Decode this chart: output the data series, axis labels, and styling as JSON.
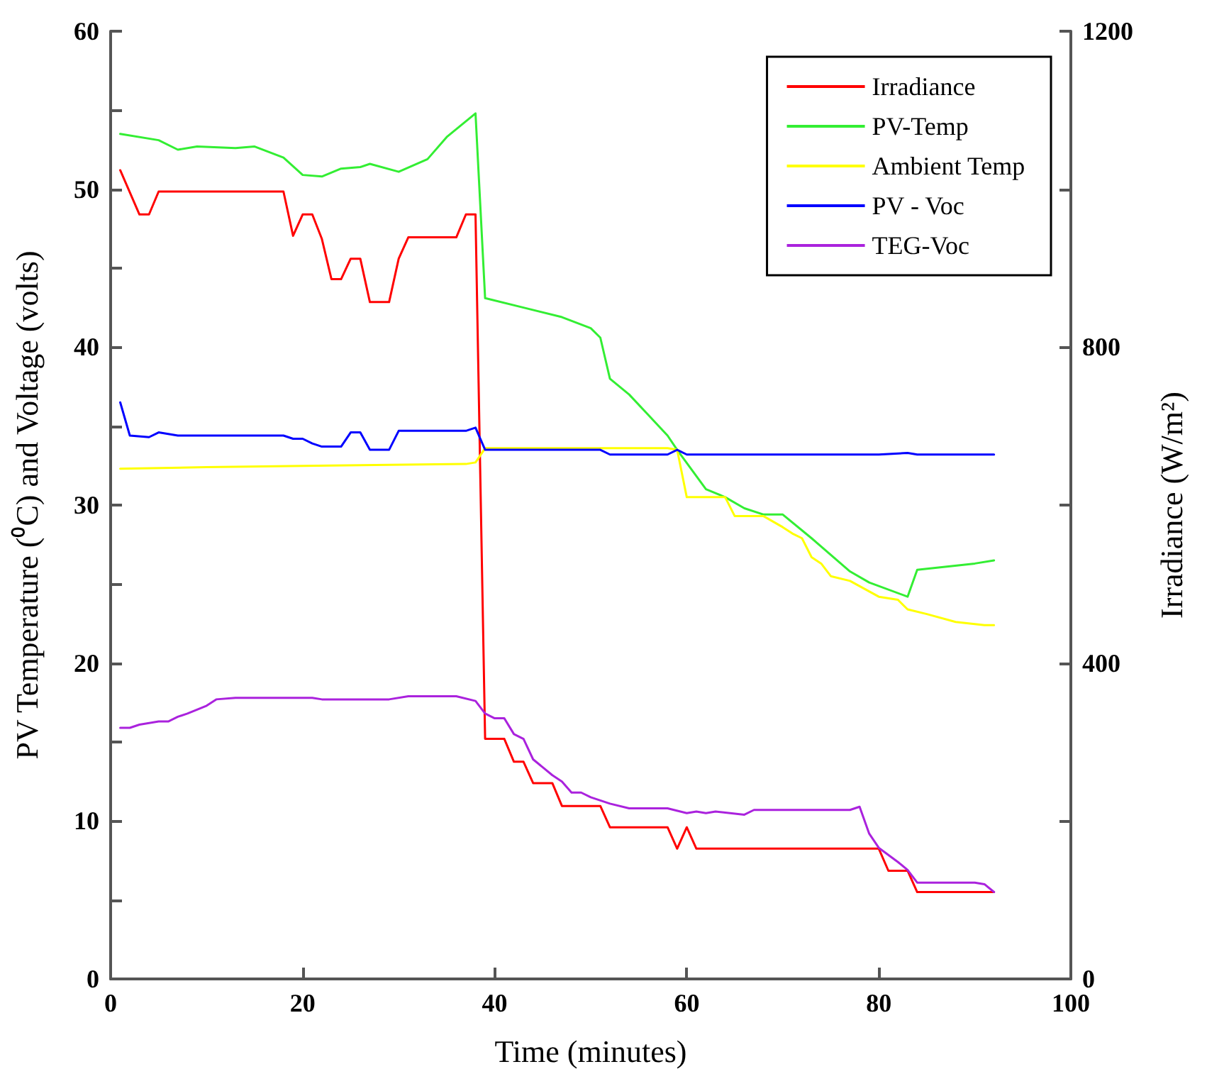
{
  "chart_data": {
    "type": "line",
    "xlabel": "Time (minutes)",
    "ylabel": "PV Temperature (⁰C) and Voltage (volts)",
    "y2label": "Irradiance (W/m²)",
    "xlim": [
      0,
      100
    ],
    "xticks": [
      0,
      20,
      40,
      60,
      80,
      100
    ],
    "ylim": [
      0,
      60
    ],
    "yticks": [
      0,
      {
        "value": 5,
        "label": null
      },
      10,
      {
        "value": 15,
        "label": null
      },
      20,
      {
        "value": 25,
        "label": null
      },
      30,
      {
        "value": 35,
        "label": null
      },
      40,
      {
        "value": 45,
        "label": null
      },
      50,
      {
        "value": 55,
        "label": null
      },
      60
    ],
    "y2lim": [
      0,
      1200
    ],
    "y2ticks": [
      0,
      {
        "value": 200,
        "label": null
      },
      400,
      {
        "value": 600,
        "label": null
      },
      800,
      {
        "value": 1000,
        "label": null
      },
      1200
    ],
    "grid": false,
    "legend": "top right",
    "marker": "none",
    "line_style": "solid",
    "series": [
      {
        "name": "Irradiance",
        "color": "#ff0000",
        "axis": "y2",
        "x": [
          1,
          3,
          4,
          5,
          18,
          19,
          20,
          21,
          22,
          23,
          24,
          25,
          26,
          27,
          29,
          30,
          31,
          36,
          37,
          38,
          39,
          41,
          42,
          43,
          44,
          46,
          47,
          51,
          52,
          58,
          59,
          60,
          61,
          80,
          81,
          83,
          84,
          92
        ],
        "values": [
          1024,
          968,
          968,
          997,
          997,
          941,
          968,
          968,
          937,
          886,
          886,
          912,
          912,
          857,
          857,
          912,
          939,
          939,
          968,
          968,
          304,
          304,
          275,
          275,
          248,
          248,
          219,
          219,
          192,
          192,
          165,
          192,
          165,
          165,
          137,
          137,
          110,
          110
        ]
      },
      {
        "name": "PV-Temp",
        "color": "#33ee33",
        "x": [
          1,
          5,
          7,
          9,
          13,
          15,
          18,
          20,
          22,
          24,
          26,
          27,
          30,
          33,
          35,
          38,
          39,
          43,
          47,
          50,
          51,
          52,
          54,
          56,
          58,
          59,
          62,
          64,
          66,
          68,
          70,
          73,
          77,
          79,
          83,
          84,
          90,
          92
        ],
        "values": [
          53.5,
          53.1,
          52.5,
          52.7,
          52.6,
          52.7,
          52.0,
          50.9,
          50.8,
          51.3,
          51.4,
          51.6,
          51.1,
          51.9,
          53.3,
          54.8,
          43.1,
          42.5,
          41.9,
          41.2,
          40.6,
          38.0,
          37.0,
          35.7,
          34.4,
          33.5,
          31.0,
          30.5,
          29.8,
          29.4,
          29.4,
          27.9,
          25.8,
          25.1,
          24.2,
          25.9,
          26.3,
          26.5
        ]
      },
      {
        "name": "Ambient Temp",
        "color": "#ffff00",
        "x": [
          1,
          10,
          23,
          37,
          38,
          39,
          58,
          59,
          60,
          64,
          65,
          68,
          70,
          71,
          72,
          73,
          74,
          75,
          77,
          80,
          82,
          83,
          85,
          88,
          91,
          92
        ],
        "values": [
          32.3,
          32.4,
          32.5,
          32.6,
          32.7,
          33.6,
          33.6,
          33.5,
          30.5,
          30.5,
          29.3,
          29.3,
          28.6,
          28.2,
          27.9,
          26.7,
          26.3,
          25.5,
          25.2,
          24.2,
          24.0,
          23.4,
          23.1,
          22.6,
          22.4,
          22.4
        ]
      },
      {
        "name": "PV - Voc",
        "color": "#0000ff",
        "x": [
          1,
          2,
          4,
          5,
          7,
          18,
          19,
          20,
          21,
          22,
          24,
          25,
          26,
          27,
          29,
          30,
          37,
          38,
          39,
          51,
          52,
          58,
          59,
          60,
          80,
          83,
          84,
          92
        ],
        "values": [
          36.5,
          34.4,
          34.3,
          34.6,
          34.4,
          34.4,
          34.2,
          34.2,
          33.9,
          33.7,
          33.7,
          34.6,
          34.6,
          33.5,
          33.5,
          34.7,
          34.7,
          34.9,
          33.5,
          33.5,
          33.2,
          33.2,
          33.5,
          33.2,
          33.2,
          33.3,
          33.2,
          33.2
        ]
      },
      {
        "name": "TEG-Voc",
        "color": "#aa22dd",
        "x": [
          1,
          2,
          3,
          5,
          6,
          7,
          8,
          10,
          11,
          13,
          21,
          22,
          29,
          31,
          36,
          38,
          39,
          40,
          41,
          42,
          43,
          44,
          46,
          47,
          48,
          49,
          50,
          52,
          54,
          58,
          60,
          61,
          62,
          63,
          66,
          67,
          77,
          78,
          79,
          80,
          82,
          83,
          84,
          90,
          91,
          92
        ],
        "values": [
          15.9,
          15.9,
          16.1,
          16.3,
          16.3,
          16.6,
          16.8,
          17.3,
          17.7,
          17.8,
          17.8,
          17.7,
          17.7,
          17.9,
          17.9,
          17.6,
          16.8,
          16.5,
          16.5,
          15.5,
          15.2,
          13.9,
          12.9,
          12.5,
          11.8,
          11.8,
          11.5,
          11.1,
          10.8,
          10.8,
          10.5,
          10.6,
          10.5,
          10.6,
          10.4,
          10.7,
          10.7,
          10.9,
          9.2,
          8.3,
          7.4,
          6.9,
          6.1,
          6.1,
          6.0,
          5.5
        ]
      }
    ]
  }
}
